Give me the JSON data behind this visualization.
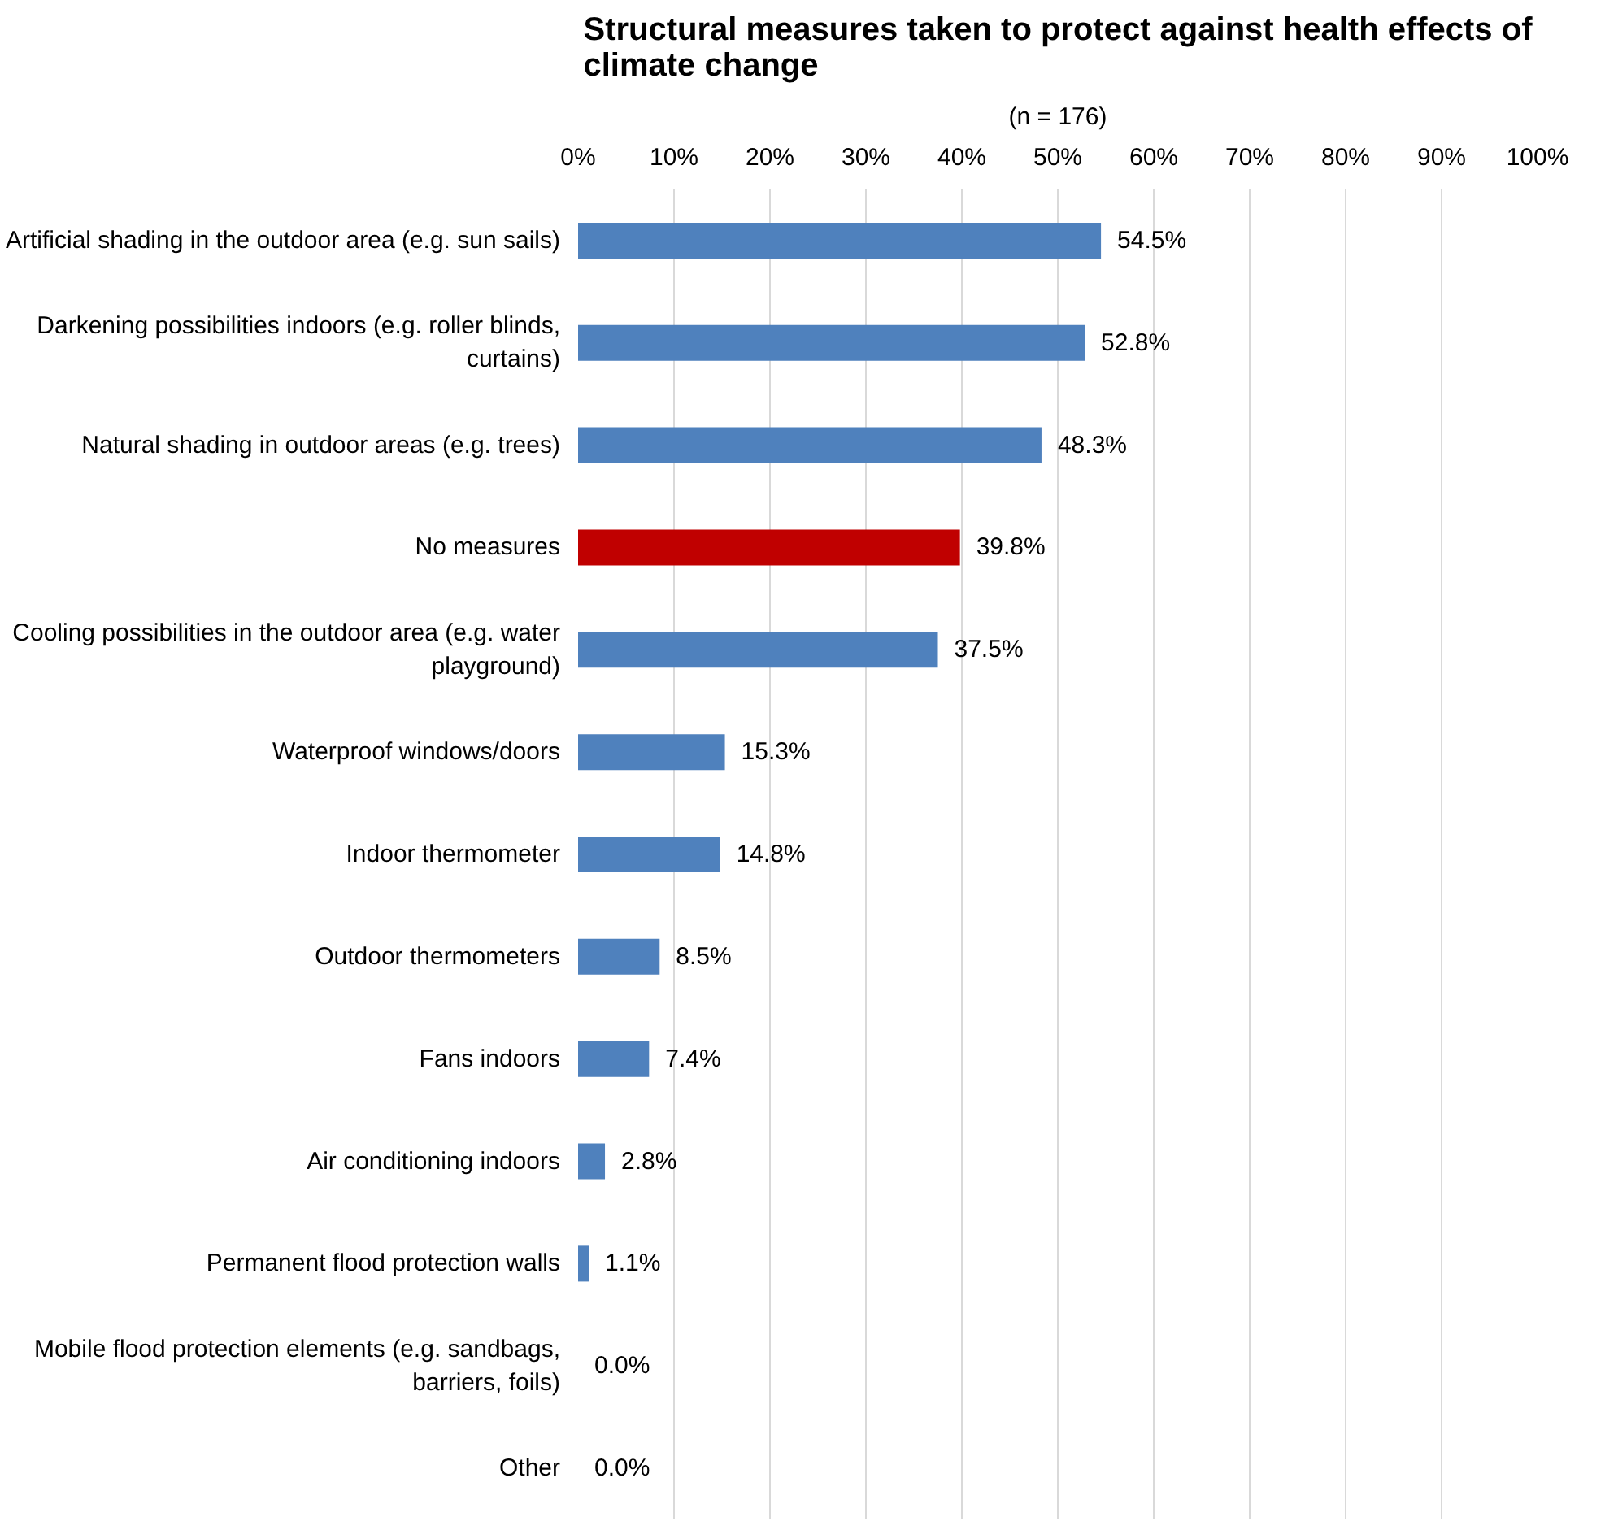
{
  "chart_data": {
    "type": "bar",
    "orientation": "horizontal",
    "title": "Structural measures taken to protect against health effects of climate change",
    "subtitle": "(n = 176)",
    "categories": [
      "Artificial shading in the outdoor area (e.g. sun sails)",
      "Darkening possibilities indoors (e.g. roller blinds, curtains)",
      "Natural shading in outdoor areas (e.g. trees)",
      "No measures",
      "Cooling possibilities in the outdoor area (e.g. water playground)",
      "Waterproof windows/doors",
      "Indoor thermometer",
      "Outdoor thermometers",
      "Fans indoors",
      "Air conditioning indoors",
      "Permanent flood protection walls",
      "Mobile flood protection elements (e.g. sandbags, barriers, foils)",
      "Other"
    ],
    "values": [
      54.5,
      52.8,
      48.3,
      39.8,
      37.5,
      15.3,
      14.8,
      8.5,
      7.4,
      2.8,
      1.1,
      0.0,
      0.0
    ],
    "value_labels": [
      "54.5%",
      "52.8%",
      "48.3%",
      "39.8%",
      "37.5%",
      "15.3%",
      "14.8%",
      "8.5%",
      "7.4%",
      "2.8%",
      "1.1%",
      "0.0%",
      "0.0%"
    ],
    "colors": [
      "#4f81bd",
      "#4f81bd",
      "#4f81bd",
      "#c00000",
      "#4f81bd",
      "#4f81bd",
      "#4f81bd",
      "#4f81bd",
      "#4f81bd",
      "#4f81bd",
      "#4f81bd",
      "#4f81bd",
      "#4f81bd"
    ],
    "xlim": [
      0,
      100
    ],
    "xticks": [
      {
        "value": 0,
        "label": "0%"
      },
      {
        "value": 10,
        "label": "10%"
      },
      {
        "value": 20,
        "label": "20%"
      },
      {
        "value": 30,
        "label": "30%"
      },
      {
        "value": 40,
        "label": "40%"
      },
      {
        "value": 50,
        "label": "50%"
      },
      {
        "value": 60,
        "label": "60%"
      },
      {
        "value": 70,
        "label": "70%"
      },
      {
        "value": 80,
        "label": "80%"
      },
      {
        "value": 90,
        "label": "90%"
      },
      {
        "value": 100,
        "label": "100%"
      }
    ],
    "grid": "x"
  }
}
